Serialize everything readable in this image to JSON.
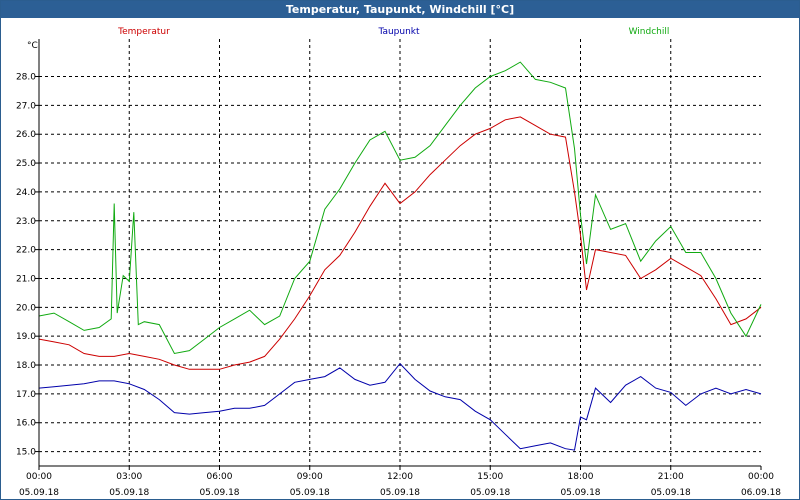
{
  "window": {
    "title": "Temperatur, Taupunkt, Windchill [°C]"
  },
  "chart_data": {
    "type": "line",
    "title": "Temperatur, Taupunkt, Windchill [°C]",
    "ylabel": "°C",
    "ylim": [
      14.5,
      29.3
    ],
    "yticks": [
      "15.0",
      "16.0",
      "17.0",
      "18.0",
      "19.0",
      "20.0",
      "21.0",
      "22.0",
      "23.0",
      "24.0",
      "25.0",
      "26.0",
      "27.0",
      "28.0"
    ],
    "xlim": [
      0,
      24
    ],
    "xticks": [
      {
        "time": "00:00",
        "date": "05.09.18"
      },
      {
        "time": "03:00",
        "date": "05.09.18"
      },
      {
        "time": "06:00",
        "date": "05.09.18"
      },
      {
        "time": "09:00",
        "date": "05.09.18"
      },
      {
        "time": "12:00",
        "date": "05.09.18"
      },
      {
        "time": "15:00",
        "date": "05.09.18"
      },
      {
        "time": "18:00",
        "date": "05.09.18"
      },
      {
        "time": "21:00",
        "date": "05.09.18"
      },
      {
        "time": "00:00",
        "date": "06.09.18"
      }
    ],
    "series": [
      {
        "name": "Temperatur",
        "color": "#cc0000",
        "x": [
          0,
          0.5,
          1,
          1.5,
          2,
          2.5,
          3,
          3.5,
          4,
          4.5,
          5,
          5.5,
          6,
          6.5,
          7,
          7.5,
          8,
          8.5,
          9,
          9.5,
          10,
          10.5,
          11,
          11.5,
          12,
          12.5,
          13,
          13.5,
          14,
          14.5,
          15,
          15.5,
          16,
          16.5,
          17,
          17.5,
          17.8,
          18,
          18.2,
          18.5,
          19,
          19.5,
          20,
          20.5,
          21,
          21.5,
          22,
          22.5,
          23,
          23.5,
          24
        ],
        "values": [
          18.9,
          18.8,
          18.7,
          18.4,
          18.3,
          18.3,
          18.4,
          18.3,
          18.2,
          18.0,
          17.85,
          17.85,
          17.85,
          18.0,
          18.1,
          18.3,
          18.9,
          19.6,
          20.4,
          21.3,
          21.8,
          22.6,
          23.5,
          24.3,
          23.6,
          24.0,
          24.6,
          25.1,
          25.6,
          26.0,
          26.2,
          26.5,
          26.6,
          26.3,
          26.0,
          25.9,
          24.0,
          22.5,
          20.6,
          22.0,
          21.9,
          21.8,
          21.0,
          21.3,
          21.7,
          21.4,
          21.1,
          20.3,
          19.4,
          19.6,
          20.0
        ]
      },
      {
        "name": "Taupunkt",
        "color": "#0000aa",
        "x": [
          0,
          0.5,
          1,
          1.5,
          2,
          2.5,
          3,
          3.5,
          4,
          4.5,
          5,
          5.5,
          6,
          6.5,
          7,
          7.5,
          8,
          8.5,
          9,
          9.5,
          10,
          10.5,
          11,
          11.5,
          12,
          12.5,
          13,
          13.5,
          14,
          14.5,
          15,
          15.5,
          16,
          16.5,
          17,
          17.5,
          17.8,
          18,
          18.2,
          18.5,
          19,
          19.5,
          20,
          20.5,
          21,
          21.5,
          22,
          22.5,
          23,
          23.5,
          24
        ],
        "values": [
          17.2,
          17.25,
          17.3,
          17.35,
          17.45,
          17.45,
          17.35,
          17.15,
          16.8,
          16.35,
          16.3,
          16.35,
          16.4,
          16.5,
          16.5,
          16.6,
          17.0,
          17.4,
          17.5,
          17.6,
          17.9,
          17.5,
          17.3,
          17.4,
          18.05,
          17.5,
          17.1,
          16.9,
          16.8,
          16.4,
          16.1,
          15.6,
          15.1,
          15.2,
          15.3,
          15.1,
          15.05,
          16.2,
          16.1,
          17.2,
          16.7,
          17.3,
          17.6,
          17.2,
          17.05,
          16.6,
          17.0,
          17.2,
          17.0,
          17.15,
          17.0
        ]
      },
      {
        "name": "Windchill",
        "color": "#11aa11",
        "x": [
          0,
          0.5,
          1,
          1.5,
          2,
          2.4,
          2.5,
          2.6,
          2.8,
          3,
          3.15,
          3.3,
          3.5,
          4,
          4.5,
          5,
          5.5,
          6,
          6.5,
          7,
          7.5,
          8,
          8.5,
          9,
          9.5,
          10,
          10.5,
          11,
          11.5,
          12,
          12.5,
          13,
          13.5,
          14,
          14.5,
          15,
          15.5,
          16,
          16.5,
          17,
          17.5,
          17.8,
          18,
          18.2,
          18.5,
          19,
          19.5,
          20,
          20.5,
          21,
          21.5,
          22,
          22.5,
          23,
          23.5,
          24
        ],
        "values": [
          19.7,
          19.8,
          19.5,
          19.2,
          19.3,
          19.6,
          23.6,
          19.8,
          21.1,
          20.9,
          23.3,
          19.4,
          19.5,
          19.4,
          18.4,
          18.5,
          18.9,
          19.3,
          19.6,
          19.9,
          19.4,
          19.7,
          21.0,
          21.6,
          23.4,
          24.1,
          25.0,
          25.8,
          26.1,
          25.1,
          25.2,
          25.6,
          26.3,
          27.0,
          27.6,
          28.0,
          28.2,
          28.5,
          27.9,
          27.8,
          27.6,
          25.5,
          23.2,
          21.5,
          23.9,
          22.7,
          22.9,
          21.6,
          22.3,
          22.8,
          21.9,
          21.9,
          21.0,
          19.8,
          19.0,
          20.1
        ]
      }
    ]
  }
}
